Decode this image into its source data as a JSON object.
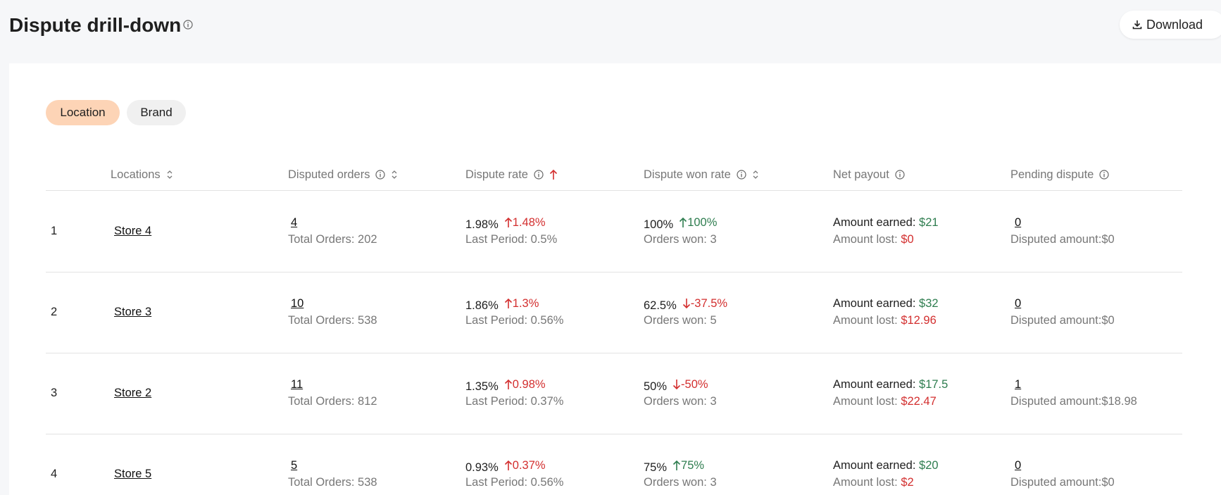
{
  "header": {
    "title": "Dispute drill-down",
    "download": "Download"
  },
  "tabs": {
    "items": [
      "Location",
      "Brand"
    ],
    "active": 0
  },
  "table": {
    "columns": [
      "Locations",
      "Disputed orders",
      "Dispute rate",
      "Dispute won rate",
      "Net payout",
      "Pending dispute"
    ],
    "rows": [
      {
        "rank": "1",
        "location": "Store 4",
        "disputed": "4",
        "total_orders": "Total Orders: 202",
        "rate": "1.98%",
        "rate_change": "1.48%",
        "last_period": "Last Period: 0.5%",
        "won_rate": "100%",
        "won_change": "100%",
        "orders_won": "Orders won: 3",
        "earned_label": "Amount earned:",
        "earned": "$21",
        "lost_label": "Amount lost:",
        "lost": "$0",
        "pending": "0",
        "disputed_amount": "Disputed amount:$0"
      },
      {
        "rank": "2",
        "location": "Store 3",
        "disputed": "10",
        "total_orders": "Total Orders: 538",
        "rate": "1.86%",
        "rate_change": "1.3%",
        "last_period": "Last Period: 0.56%",
        "won_rate": "62.5%",
        "won_change": "-37.5%",
        "orders_won": "Orders won: 5",
        "earned_label": "Amount earned:",
        "earned": "$32",
        "lost_label": "Amount lost:",
        "lost": "$12.96",
        "pending": "0",
        "disputed_amount": "Disputed amount:$0"
      },
      {
        "rank": "3",
        "location": "Store 2",
        "disputed": "11",
        "total_orders": "Total Orders: 812",
        "rate": "1.35%",
        "rate_change": "0.98%",
        "last_period": "Last Period: 0.37%",
        "won_rate": "50%",
        "won_change": "-50%",
        "orders_won": "Orders won: 3",
        "earned_label": "Amount earned:",
        "earned": "$17.5",
        "lost_label": "Amount lost:",
        "lost": "$22.47",
        "pending": "1",
        "disputed_amount": "Disputed amount:$18.98"
      },
      {
        "rank": "4",
        "location": "Store 5",
        "disputed": "5",
        "total_orders": "Total Orders: 538",
        "rate": "0.93%",
        "rate_change": "0.37%",
        "last_period": "Last Period: 0.56%",
        "won_rate": "75%",
        "won_change": "75%",
        "orders_won": "Orders won: 3",
        "earned_label": "Amount earned:",
        "earned": "$20",
        "lost_label": "Amount lost:",
        "lost": "$2",
        "pending": "0",
        "disputed_amount": "Disputed amount:$0"
      }
    ]
  }
}
